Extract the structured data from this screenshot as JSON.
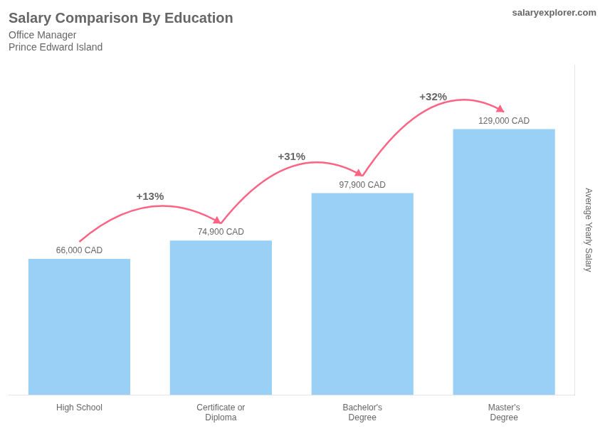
{
  "chart_data": {
    "type": "bar",
    "title": "Salary Comparison By Education",
    "subtitle": [
      "Office Manager",
      "Prince Edward Island"
    ],
    "ylabel": "Average Yearly Salary",
    "categories": [
      "High School",
      "Certificate or\nDiploma",
      "Bachelor's\nDegree",
      "Master's\nDegree"
    ],
    "values": [
      66000,
      74900,
      97900,
      129000
    ],
    "value_labels": [
      "66,000 CAD",
      "74,900 CAD",
      "97,900 CAD",
      "129,000 CAD"
    ],
    "data_labels": true,
    "annotations": [
      {
        "text": "+13%",
        "from": "High School",
        "to": "Certificate or\nDiploma"
      },
      {
        "text": "+31%",
        "from": "Certificate or\nDiploma",
        "to": "Bachelor's\nDegree"
      },
      {
        "text": "+32%",
        "from": "Bachelor's\nDegree",
        "to": "Master's\nDegree"
      },
      {
        "text": "salaryexplorer.com"
      }
    ],
    "ylim": [
      0,
      160000
    ],
    "grid": false,
    "tick_labels": "x"
  }
}
